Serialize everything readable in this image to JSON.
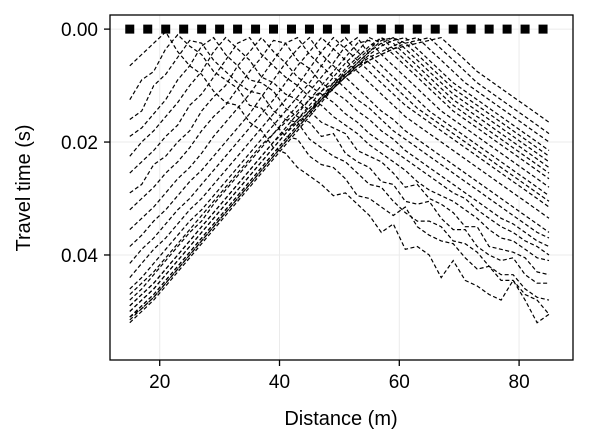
{
  "chart_data": {
    "type": "line",
    "title": "",
    "xlabel": "Distance (m)",
    "ylabel": "Travel time (s)",
    "xlim": [
      11.7,
      89.0
    ],
    "ylim": [
      0.0586,
      -0.0025
    ],
    "y_inverted": true,
    "grid": true,
    "legend": "none",
    "x_ticks": [
      20,
      40,
      60,
      80
    ],
    "x_tick_labels": [
      "20",
      "40",
      "60",
      "80"
    ],
    "y_ticks": [
      0.0,
      0.02,
      0.04
    ],
    "y_tick_labels": [
      "0.00",
      "0.02",
      "0.04"
    ],
    "line_style": "dashed",
    "line_color": "#000000",
    "sources": {
      "marker": "square",
      "x": [
        15,
        18,
        21,
        24,
        27,
        30,
        33,
        36,
        39,
        42,
        45,
        48,
        51,
        54,
        57,
        60,
        63,
        66,
        69,
        72,
        75,
        78,
        81,
        84
      ],
      "y": 0.0
    },
    "receivers_x": [
      15,
      17,
      19,
      21,
      23,
      25,
      27,
      29,
      31,
      33,
      35,
      37,
      39,
      41,
      43,
      45,
      47,
      49,
      51,
      53,
      55,
      57,
      59,
      61,
      63,
      65,
      67,
      69,
      71,
      73,
      75,
      77,
      79,
      81,
      83,
      85
    ],
    "series": [
      {
        "values": [
          0.0065,
          0.0045,
          0.0025,
          0.0005,
          0.004,
          0.0065,
          0.008,
          0.011,
          0.013,
          0.0135,
          0.0165,
          0.018,
          0.021,
          0.022,
          0.0245,
          0.026,
          0.0275,
          0.0295,
          0.029,
          0.031,
          0.033,
          0.036,
          0.0345,
          0.039,
          0.0385,
          0.04,
          0.044,
          0.041,
          0.0445,
          0.0455,
          0.047,
          0.048,
          0.0445,
          0.048,
          0.052,
          0.0505
        ]
      },
      {
        "values": [
          0.0125,
          0.009,
          0.0075,
          0.0035,
          0.001,
          0.003,
          0.0045,
          0.0075,
          0.009,
          0.0105,
          0.0135,
          0.014,
          0.0165,
          0.019,
          0.0195,
          0.0225,
          0.024,
          0.0245,
          0.0265,
          0.0295,
          0.03,
          0.0315,
          0.033,
          0.0315,
          0.035,
          0.0365,
          0.0375,
          0.038,
          0.0405,
          0.0425,
          0.042,
          0.0445,
          0.0445,
          0.047,
          0.048,
          0.0505
        ]
      },
      {
        "values": [
          0.016,
          0.0145,
          0.01,
          0.008,
          0.005,
          0.002,
          0.0025,
          0.0055,
          0.0075,
          0.0095,
          0.011,
          0.0115,
          0.0145,
          0.016,
          0.0165,
          0.0195,
          0.021,
          0.0225,
          0.0235,
          0.0255,
          0.0275,
          0.028,
          0.0305,
          0.0325,
          0.034,
          0.034,
          0.035,
          0.0375,
          0.038,
          0.0395,
          0.042,
          0.0435,
          0.0435,
          0.046,
          0.0475,
          0.048
        ]
      },
      {
        "values": [
          0.019,
          0.0175,
          0.015,
          0.0125,
          0.009,
          0.0065,
          0.003,
          0.0015,
          0.0045,
          0.0065,
          0.009,
          0.0095,
          0.011,
          0.014,
          0.0155,
          0.0165,
          0.019,
          0.0185,
          0.022,
          0.0235,
          0.0245,
          0.027,
          0.0275,
          0.0305,
          0.031,
          0.0305,
          0.0335,
          0.0355,
          0.0355,
          0.0385,
          0.04,
          0.041,
          0.0405,
          0.0435,
          0.045,
          0.045
        ]
      },
      {
        "values": [
          0.0225,
          0.02,
          0.018,
          0.0155,
          0.013,
          0.01,
          0.0075,
          0.004,
          0.0015,
          0.0035,
          0.0055,
          0.0085,
          0.0095,
          0.0115,
          0.0125,
          0.0145,
          0.0165,
          0.0175,
          0.0185,
          0.0215,
          0.0225,
          0.0235,
          0.0255,
          0.028,
          0.0275,
          0.03,
          0.031,
          0.0325,
          0.035,
          0.035,
          0.0385,
          0.039,
          0.0395,
          0.0405,
          0.043,
          0.0435
        ]
      },
      {
        "values": [
          0.0255,
          0.0235,
          0.0215,
          0.019,
          0.017,
          0.0135,
          0.0115,
          0.0085,
          0.0055,
          0.0025,
          0.0015,
          0.0045,
          0.0065,
          0.0085,
          0.01,
          0.012,
          0.0135,
          0.0155,
          0.017,
          0.0185,
          0.0205,
          0.022,
          0.0235,
          0.025,
          0.027,
          0.0285,
          0.0295,
          0.0305,
          0.032,
          0.0335,
          0.0355,
          0.037,
          0.0375,
          0.039,
          0.0405,
          0.041
        ]
      },
      {
        "values": [
          0.029,
          0.0275,
          0.024,
          0.0225,
          0.02,
          0.018,
          0.0145,
          0.012,
          0.01,
          0.0065,
          0.004,
          0.0015,
          0.004,
          0.006,
          0.0085,
          0.01,
          0.0115,
          0.013,
          0.015,
          0.0165,
          0.0185,
          0.02,
          0.0215,
          0.023,
          0.0245,
          0.026,
          0.0275,
          0.029,
          0.03,
          0.032,
          0.0335,
          0.035,
          0.036,
          0.0375,
          0.0385,
          0.04
        ]
      },
      {
        "values": [
          0.032,
          0.03,
          0.028,
          0.0255,
          0.0235,
          0.021,
          0.018,
          0.0155,
          0.0135,
          0.0105,
          0.0075,
          0.005,
          0.002,
          0.0025,
          0.0055,
          0.007,
          0.0095,
          0.011,
          0.0125,
          0.0145,
          0.016,
          0.018,
          0.0195,
          0.0215,
          0.023,
          0.0245,
          0.026,
          0.0275,
          0.029,
          0.0305,
          0.032,
          0.0335,
          0.0345,
          0.036,
          0.0375,
          0.0385
        ]
      },
      {
        "values": [
          0.0355,
          0.0335,
          0.0315,
          0.029,
          0.0265,
          0.0245,
          0.022,
          0.019,
          0.0165,
          0.014,
          0.0115,
          0.0085,
          0.0055,
          0.0025,
          0.0015,
          0.0045,
          0.0065,
          0.0085,
          0.0105,
          0.0125,
          0.014,
          0.016,
          0.018,
          0.0195,
          0.021,
          0.0225,
          0.024,
          0.0255,
          0.027,
          0.0285,
          0.03,
          0.0315,
          0.033,
          0.0345,
          0.036,
          0.037
        ]
      },
      {
        "values": [
          0.0385,
          0.0365,
          0.034,
          0.032,
          0.0295,
          0.027,
          0.025,
          0.0225,
          0.02,
          0.0175,
          0.015,
          0.012,
          0.009,
          0.006,
          0.0035,
          0.0015,
          0.0045,
          0.0065,
          0.0085,
          0.0105,
          0.0125,
          0.0145,
          0.016,
          0.018,
          0.0195,
          0.021,
          0.0225,
          0.024,
          0.0255,
          0.027,
          0.0285,
          0.03,
          0.0315,
          0.033,
          0.0345,
          0.036
        ]
      },
      {
        "values": [
          0.0415,
          0.039,
          0.037,
          0.0345,
          0.032,
          0.03,
          0.0275,
          0.025,
          0.0225,
          0.02,
          0.0175,
          0.015,
          0.0125,
          0.0095,
          0.0065,
          0.004,
          0.0015,
          0.0035,
          0.0055,
          0.0075,
          0.0095,
          0.0115,
          0.0135,
          0.0155,
          0.017,
          0.0185,
          0.02,
          0.0215,
          0.023,
          0.0245,
          0.026,
          0.0275,
          0.029,
          0.0305,
          0.032,
          0.0335
        ]
      },
      {
        "values": [
          0.044,
          0.0415,
          0.039,
          0.037,
          0.0345,
          0.032,
          0.03,
          0.0275,
          0.025,
          0.0225,
          0.02,
          0.0175,
          0.015,
          0.0125,
          0.01,
          0.007,
          0.004,
          0.0015,
          0.0035,
          0.0055,
          0.0075,
          0.0095,
          0.0115,
          0.0135,
          0.015,
          0.0165,
          0.018,
          0.0195,
          0.021,
          0.0225,
          0.024,
          0.0255,
          0.027,
          0.0285,
          0.03,
          0.0315
        ]
      },
      {
        "values": [
          0.046,
          0.044,
          0.0415,
          0.039,
          0.0365,
          0.034,
          0.032,
          0.0295,
          0.027,
          0.0245,
          0.022,
          0.0195,
          0.017,
          0.0145,
          0.012,
          0.0095,
          0.0065,
          0.0035,
          0.0015,
          0.004,
          0.006,
          0.008,
          0.01,
          0.012,
          0.014,
          0.0155,
          0.017,
          0.0185,
          0.02,
          0.0215,
          0.023,
          0.0245,
          0.026,
          0.0275,
          0.029,
          0.0305
        ]
      },
      {
        "values": [
          0.048,
          0.046,
          0.0435,
          0.041,
          0.0385,
          0.036,
          0.034,
          0.031,
          0.0285,
          0.026,
          0.0235,
          0.021,
          0.0185,
          0.016,
          0.0135,
          0.011,
          0.0085,
          0.006,
          0.003,
          0.0015,
          0.0045,
          0.0065,
          0.0085,
          0.0105,
          0.0125,
          0.0145,
          0.016,
          0.0175,
          0.019,
          0.0205,
          0.022,
          0.0235,
          0.025,
          0.0265,
          0.028,
          0.0295
        ]
      },
      {
        "values": [
          0.049,
          0.047,
          0.045,
          0.0425,
          0.04,
          0.0375,
          0.035,
          0.0325,
          0.03,
          0.0275,
          0.025,
          0.0225,
          0.02,
          0.0175,
          0.015,
          0.0125,
          0.01,
          0.0075,
          0.005,
          0.0025,
          0.002,
          0.0045,
          0.0065,
          0.0085,
          0.0105,
          0.0125,
          0.0145,
          0.016,
          0.0175,
          0.019,
          0.0205,
          0.022,
          0.0235,
          0.025,
          0.0265,
          0.028
        ]
      },
      {
        "values": [
          0.05,
          0.048,
          0.046,
          0.0435,
          0.041,
          0.0385,
          0.036,
          0.0335,
          0.031,
          0.0285,
          0.026,
          0.0235,
          0.021,
          0.0185,
          0.016,
          0.0135,
          0.011,
          0.0085,
          0.006,
          0.004,
          0.0015,
          0.0025,
          0.0045,
          0.0065,
          0.0085,
          0.0105,
          0.0125,
          0.0145,
          0.016,
          0.0175,
          0.019,
          0.0205,
          0.022,
          0.0235,
          0.025,
          0.0265
        ]
      },
      {
        "values": [
          0.051,
          0.049,
          0.047,
          0.0445,
          0.042,
          0.0395,
          0.037,
          0.0345,
          0.032,
          0.0295,
          0.027,
          0.0245,
          0.022,
          0.0195,
          0.017,
          0.0145,
          0.012,
          0.0095,
          0.007,
          0.005,
          0.003,
          0.0015,
          0.0035,
          0.0055,
          0.0075,
          0.0095,
          0.0115,
          0.0135,
          0.015,
          0.0165,
          0.018,
          0.0195,
          0.021,
          0.0225,
          0.024,
          0.0255
        ]
      },
      {
        "values": [
          0.051,
          0.0495,
          0.0475,
          0.045,
          0.0425,
          0.04,
          0.0375,
          0.035,
          0.0325,
          0.03,
          0.0275,
          0.025,
          0.0225,
          0.02,
          0.0175,
          0.015,
          0.0125,
          0.01,
          0.0075,
          0.0055,
          0.0035,
          0.0015,
          0.0025,
          0.0045,
          0.0065,
          0.0085,
          0.0105,
          0.0125,
          0.014,
          0.0155,
          0.017,
          0.0185,
          0.02,
          0.0215,
          0.023,
          0.0245
        ]
      },
      {
        "values": [
          0.052,
          0.05,
          0.048,
          0.0455,
          0.043,
          0.0405,
          0.038,
          0.0355,
          0.033,
          0.0305,
          0.028,
          0.0255,
          0.023,
          0.0205,
          0.018,
          0.0155,
          0.013,
          0.0105,
          0.008,
          0.006,
          0.004,
          0.002,
          0.0015,
          0.0035,
          0.0055,
          0.0075,
          0.0095,
          0.0115,
          0.013,
          0.0145,
          0.016,
          0.0175,
          0.019,
          0.0205,
          0.022,
          0.0235
        ]
      },
      {
        "values": [
          0.0515,
          0.0495,
          0.0475,
          0.045,
          0.0425,
          0.04,
          0.0375,
          0.035,
          0.0325,
          0.03,
          0.0275,
          0.025,
          0.0225,
          0.02,
          0.0175,
          0.015,
          0.0125,
          0.01,
          0.008,
          0.006,
          0.004,
          0.0025,
          0.0015,
          0.0025,
          0.0045,
          0.0065,
          0.0085,
          0.0105,
          0.012,
          0.0135,
          0.015,
          0.0165,
          0.018,
          0.0195,
          0.021,
          0.0225
        ]
      },
      {
        "values": [
          0.051,
          0.049,
          0.047,
          0.0445,
          0.042,
          0.0395,
          0.037,
          0.0345,
          0.032,
          0.0295,
          0.027,
          0.0245,
          0.022,
          0.0195,
          0.017,
          0.0145,
          0.0125,
          0.0105,
          0.0085,
          0.0065,
          0.0045,
          0.003,
          0.002,
          0.0015,
          0.0035,
          0.0055,
          0.0075,
          0.0095,
          0.011,
          0.0125,
          0.014,
          0.0155,
          0.017,
          0.0185,
          0.02,
          0.0215
        ]
      },
      {
        "values": [
          0.05,
          0.048,
          0.046,
          0.0435,
          0.041,
          0.0385,
          0.036,
          0.0335,
          0.031,
          0.0285,
          0.026,
          0.0235,
          0.021,
          0.0185,
          0.0165,
          0.0145,
          0.0125,
          0.0105,
          0.0085,
          0.0065,
          0.005,
          0.004,
          0.003,
          0.002,
          0.0015,
          0.0035,
          0.0055,
          0.0075,
          0.0095,
          0.011,
          0.0125,
          0.014,
          0.0155,
          0.017,
          0.0185,
          0.02
        ]
      },
      {
        "values": [
          0.049,
          0.047,
          0.045,
          0.0425,
          0.04,
          0.0375,
          0.035,
          0.0325,
          0.03,
          0.0275,
          0.025,
          0.0225,
          0.02,
          0.018,
          0.016,
          0.014,
          0.012,
          0.01,
          0.0085,
          0.007,
          0.0055,
          0.0045,
          0.0035,
          0.0025,
          0.002,
          0.0015,
          0.0035,
          0.0055,
          0.0075,
          0.0095,
          0.011,
          0.0125,
          0.014,
          0.0155,
          0.017,
          0.0185
        ]
      },
      {
        "values": [
          0.047,
          0.045,
          0.043,
          0.0405,
          0.038,
          0.0355,
          0.033,
          0.0305,
          0.028,
          0.0255,
          0.023,
          0.0205,
          0.0185,
          0.0165,
          0.0145,
          0.0125,
          0.011,
          0.0095,
          0.008,
          0.0065,
          0.0055,
          0.0045,
          0.0035,
          0.003,
          0.0025,
          0.002,
          0.0015,
          0.0035,
          0.0055,
          0.0075,
          0.009,
          0.0105,
          0.012,
          0.0135,
          0.015,
          0.0165
        ]
      }
    ]
  }
}
